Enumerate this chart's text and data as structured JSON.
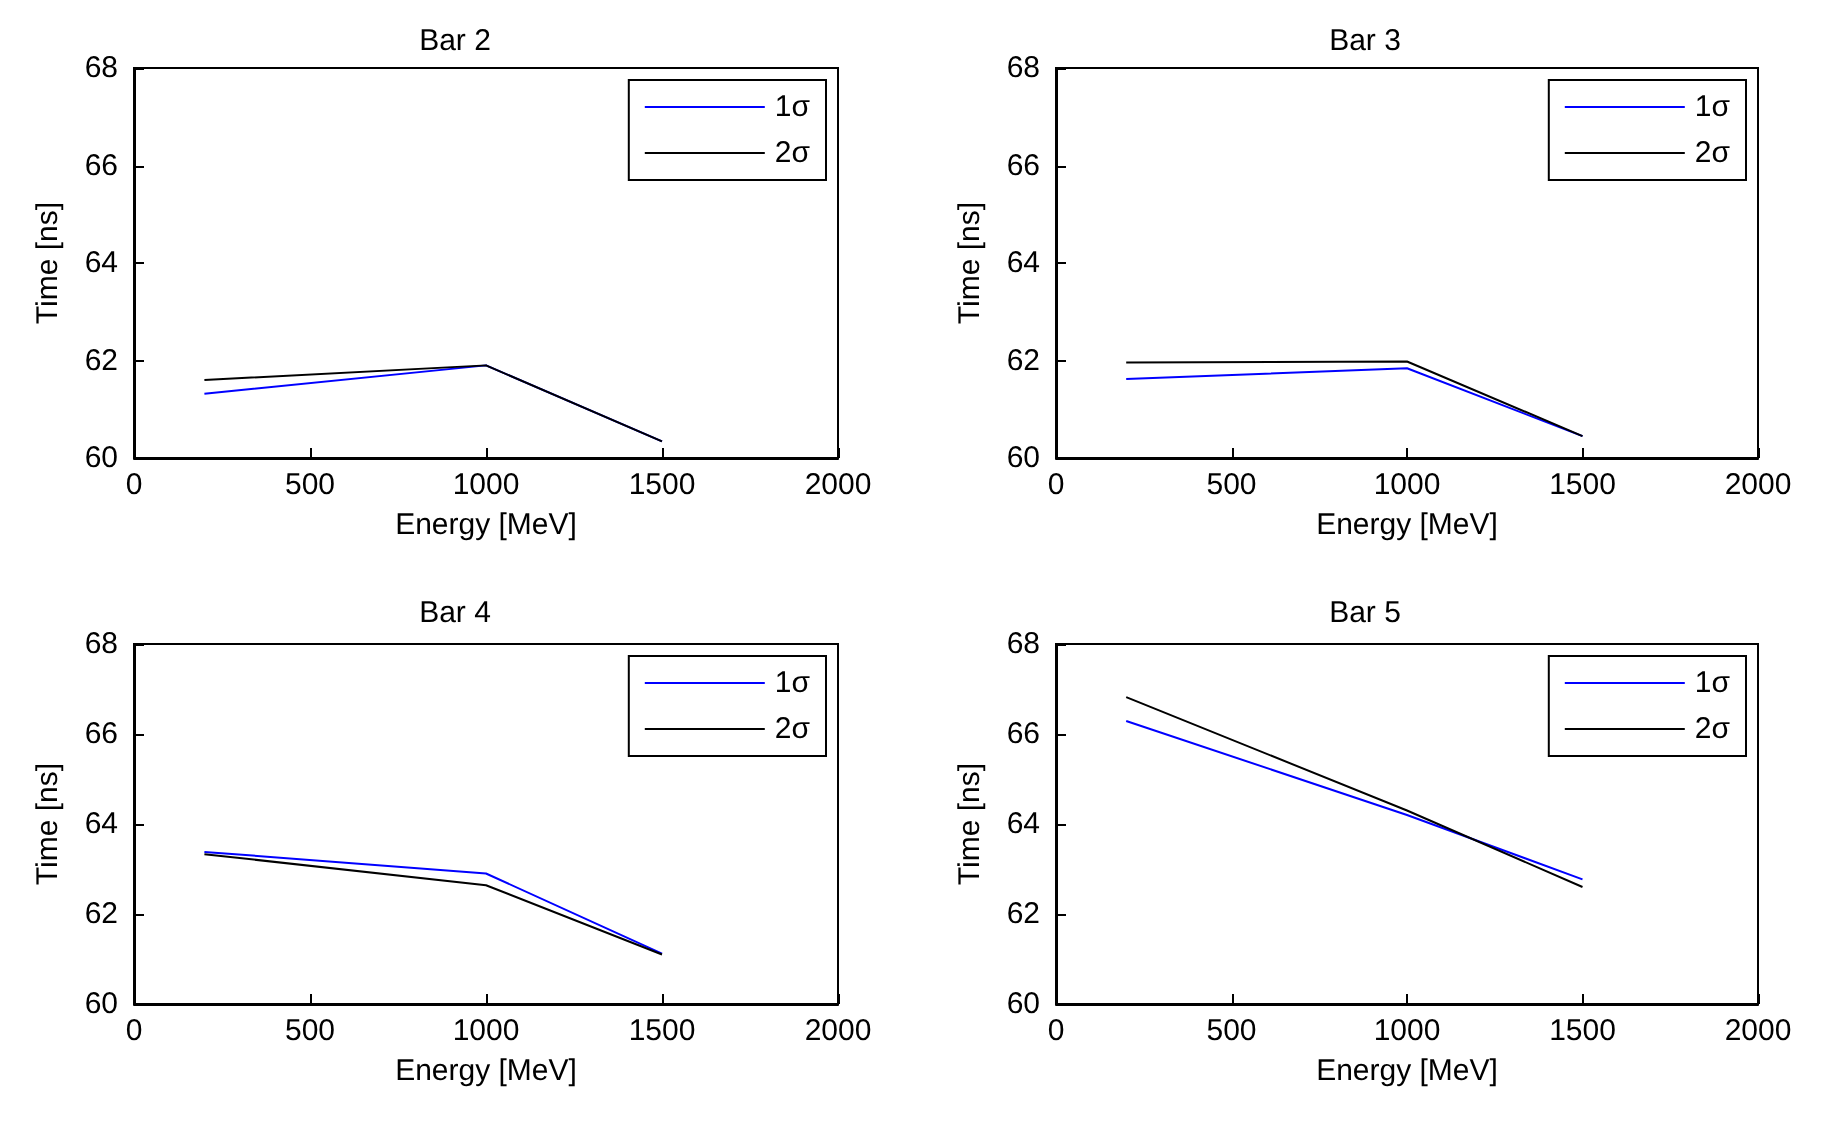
{
  "chart_data": [
    {
      "type": "line",
      "title": "Bar 2",
      "xlabel": "Energy [MeV]",
      "ylabel": "Time [ns]",
      "x": [
        200,
        1000,
        1500
      ],
      "xlim": [
        0,
        2000
      ],
      "xticks": [
        0,
        500,
        1000,
        1500,
        2000
      ],
      "ylim": [
        60,
        68
      ],
      "yticks": [
        60,
        62,
        64,
        66,
        68
      ],
      "legend": "top right",
      "grid": false,
      "series": [
        {
          "name": "1σ",
          "color": "#0000ff",
          "values": [
            61.32,
            61.9,
            60.34
          ]
        },
        {
          "name": "2σ",
          "color": "#000000",
          "values": [
            61.6,
            61.9,
            60.34
          ]
        }
      ]
    },
    {
      "type": "line",
      "title": "Bar 3",
      "xlabel": "Energy [MeV]",
      "ylabel": "Time [ns]",
      "x": [
        200,
        1000,
        1500
      ],
      "xlim": [
        0,
        2000
      ],
      "xticks": [
        0,
        500,
        1000,
        1500,
        2000
      ],
      "ylim": [
        60,
        68
      ],
      "yticks": [
        60,
        62,
        64,
        66,
        68
      ],
      "legend": "top right",
      "grid": false,
      "series": [
        {
          "name": "1σ",
          "color": "#0000ff",
          "values": [
            61.62,
            61.84,
            60.45
          ]
        },
        {
          "name": "2σ",
          "color": "#000000",
          "values": [
            61.96,
            61.98,
            60.45
          ]
        }
      ]
    },
    {
      "type": "line",
      "title": "Bar 4",
      "xlabel": "Energy [MeV]",
      "ylabel": "Time [ns]",
      "x": [
        200,
        1000,
        1500
      ],
      "xlim": [
        0,
        2000
      ],
      "xticks": [
        0,
        500,
        1000,
        1500,
        2000
      ],
      "ylim": [
        60,
        68
      ],
      "yticks": [
        60,
        62,
        64,
        66,
        68
      ],
      "legend": "top right",
      "grid": false,
      "series": [
        {
          "name": "1σ",
          "color": "#0000ff",
          "values": [
            63.38,
            62.9,
            61.12
          ]
        },
        {
          "name": "2σ",
          "color": "#000000",
          "values": [
            63.33,
            62.64,
            61.1
          ]
        }
      ]
    },
    {
      "type": "line",
      "title": "Bar 5",
      "xlabel": "Energy [MeV]",
      "ylabel": "Time [ns]",
      "x": [
        200,
        1000,
        1500
      ],
      "xlim": [
        0,
        2000
      ],
      "xticks": [
        0,
        500,
        1000,
        1500,
        2000
      ],
      "ylim": [
        60,
        68
      ],
      "yticks": [
        60,
        62,
        64,
        66,
        68
      ],
      "legend": "top right",
      "grid": false,
      "series": [
        {
          "name": "1σ",
          "color": "#0000ff",
          "values": [
            66.29,
            64.2,
            62.77
          ]
        },
        {
          "name": "2σ",
          "color": "#000000",
          "values": [
            66.82,
            64.3,
            62.6
          ]
        }
      ]
    }
  ]
}
